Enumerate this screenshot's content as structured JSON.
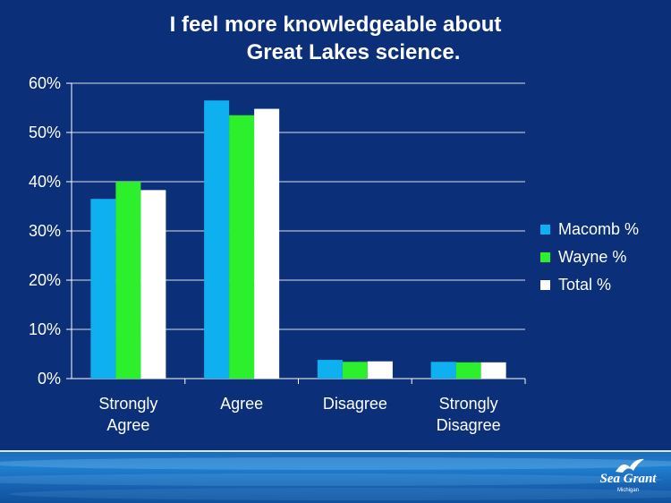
{
  "slide": {
    "title_line1": "I feel more knowledgeable about",
    "title_line2": "Great Lakes science."
  },
  "chart_data": {
    "type": "bar",
    "categories": [
      [
        "Strongly",
        "Agree"
      ],
      [
        "Agree"
      ],
      [
        "Disagree"
      ],
      [
        "Strongly",
        "Disagree"
      ]
    ],
    "series": [
      {
        "name": "Macomb %",
        "color": "#0fb0f0",
        "values": [
          36.5,
          56.5,
          3.8,
          3.4
        ]
      },
      {
        "name": "Wayne %",
        "color": "#2cf02c",
        "values": [
          40.0,
          53.5,
          3.4,
          3.3
        ]
      },
      {
        "name": "Total %",
        "color": "#ffffff",
        "values": [
          38.3,
          54.8,
          3.5,
          3.3
        ]
      }
    ],
    "yticks": [
      "0%",
      "10%",
      "20%",
      "30%",
      "40%",
      "50%",
      "60%"
    ],
    "ylim": [
      0,
      60
    ],
    "grid": true,
    "legend_position": "right"
  },
  "logo": {
    "name": "Sea Grant",
    "subtitle": "Michigan"
  },
  "colors": {
    "background": "#0b3079",
    "text": "#ffffff",
    "axis": "#ffffff"
  }
}
